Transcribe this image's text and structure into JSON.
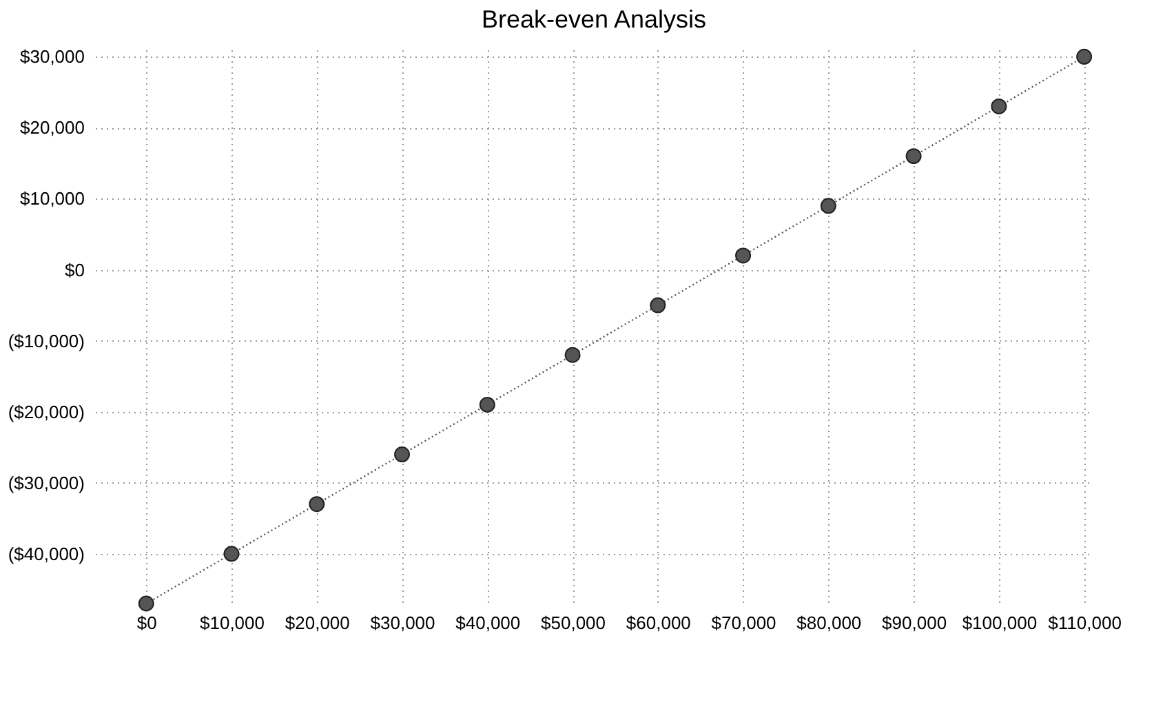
{
  "chart_data": {
    "type": "line",
    "title": "Break-even Analysis",
    "x": [
      0,
      10000,
      20000,
      30000,
      40000,
      50000,
      60000,
      70000,
      80000,
      90000,
      100000,
      110000
    ],
    "series": [
      {
        "color": "#555555",
        "values": [
          -47000,
          -40000,
          -33000,
          -26000,
          -19000,
          -12000,
          -5000,
          2000,
          9000,
          16000,
          23000,
          30000
        ]
      }
    ],
    "xlim": [
      -6000,
      111000
    ],
    "xticks": [
      {
        "value": 0,
        "label": "$0"
      },
      {
        "value": 10000,
        "label": "$10,000"
      },
      {
        "value": 20000,
        "label": "$20,000"
      },
      {
        "value": 30000,
        "label": "$30,000"
      },
      {
        "value": 40000,
        "label": "$40,000"
      },
      {
        "value": 50000,
        "label": "$50,000"
      },
      {
        "value": 60000,
        "label": "$60,000"
      },
      {
        "value": 70000,
        "label": "$70,000"
      },
      {
        "value": 80000,
        "label": "$80,000"
      },
      {
        "value": 90000,
        "label": "$90,000"
      },
      {
        "value": 100000,
        "label": "$100,000"
      },
      {
        "value": 110000,
        "label": "$110,000"
      }
    ],
    "ylim": [
      -47000,
      31000
    ],
    "yticks": [
      {
        "value": -40000,
        "label": "($40,000)"
      },
      {
        "value": -30000,
        "label": "($30,000)"
      },
      {
        "value": -20000,
        "label": "($20,000)"
      },
      {
        "value": -10000,
        "label": "($10,000)"
      },
      {
        "value": 0,
        "label": "$0"
      },
      {
        "value": 10000,
        "label": "$10,000"
      },
      {
        "value": 20000,
        "label": "$20,000"
      },
      {
        "value": 30000,
        "label": "$30,000"
      }
    ],
    "grid": true,
    "legend": false,
    "marker": "circle",
    "line_style": "dotted"
  }
}
